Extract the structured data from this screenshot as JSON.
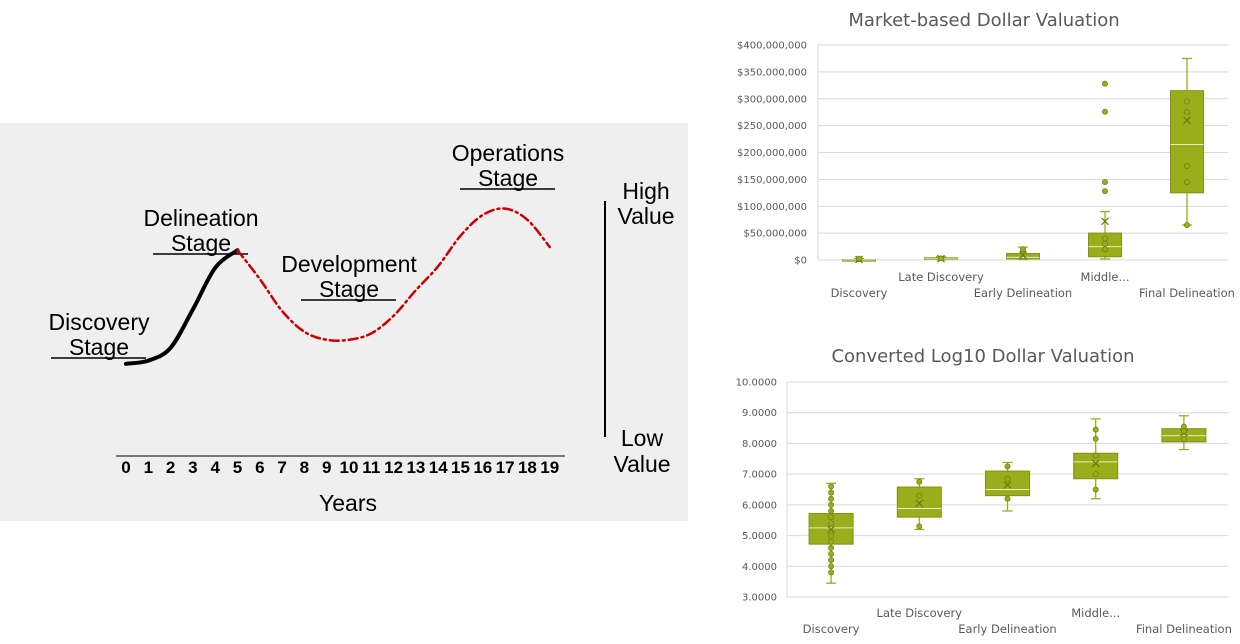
{
  "chart_data": [
    {
      "type": "line",
      "xlabel": "Years",
      "x_ticks": [
        "0",
        "1",
        "2",
        "3",
        "4",
        "5",
        "6",
        "7",
        "8",
        "9",
        "10",
        "11",
        "12",
        "13",
        "14",
        "15",
        "16",
        "17",
        "18",
        "19"
      ],
      "stages": [
        {
          "id": "discovery",
          "line1": "Discovery",
          "line2": "Stage"
        },
        {
          "id": "delineation",
          "line1": "Delineation",
          "line2": "Stage"
        },
        {
          "id": "development",
          "line1": "Development",
          "line2": "Stage"
        },
        {
          "id": "operations",
          "line1": "Operations",
          "line2": "Stage"
        }
      ],
      "value_axis": {
        "high": [
          "High",
          "Value"
        ],
        "low": [
          "Low",
          "Value"
        ]
      },
      "series": [
        {
          "style": "solid",
          "color": "#000000",
          "x": [
            0,
            1,
            2,
            3,
            4,
            5
          ],
          "y": [
            0.12,
            0.14,
            0.22,
            0.46,
            0.72,
            0.83
          ]
        },
        {
          "style": "dash-dot",
          "color": "#cc0000",
          "x": [
            5,
            6,
            7,
            8,
            9,
            10,
            11,
            12,
            13,
            14,
            15,
            16,
            17,
            18,
            19
          ],
          "y": [
            0.83,
            0.65,
            0.45,
            0.32,
            0.27,
            0.27,
            0.31,
            0.42,
            0.58,
            0.73,
            0.92,
            1.05,
            1.09,
            1.02,
            0.85
          ]
        }
      ]
    },
    {
      "type": "box",
      "title": "Market-based Dollar Valuation",
      "ylim": [
        0,
        400000000
      ],
      "y_ticks": [
        "$0",
        "$50,000,000",
        "$100,000,000",
        "$150,000,000",
        "$200,000,000",
        "$250,000,000",
        "$300,000,000",
        "$350,000,000",
        "$400,000,000"
      ],
      "categories": [
        "Discovery",
        "Late Discovery",
        "Early Delineation",
        "Middle...",
        "Final Delineation"
      ],
      "color": "#9aae1c",
      "boxes": [
        {
          "min": 0,
          "q1": 0,
          "median": 200000,
          "q3": 800000,
          "max": 3000000,
          "mean": 1000000,
          "points": [
            1500000,
            2500000
          ]
        },
        {
          "min": 200000,
          "q1": 1000000,
          "median": 2000000,
          "q3": 4000000,
          "max": 6000000,
          "mean": 2500000,
          "points": [
            3000000
          ]
        },
        {
          "min": 1000000,
          "q1": 2000000,
          "median": 5000000,
          "q3": 12000000,
          "max": 24000000,
          "mean": 9000000,
          "points": [
            16000000,
            20000000
          ]
        },
        {
          "min": 2000000,
          "q1": 6000000,
          "median": 25000000,
          "q3": 50000000,
          "max": 90000000,
          "mean": 72000000,
          "points": [
            328000000,
            276000000,
            145000000,
            128000000,
            40000000,
            30000000,
            20000000
          ]
        },
        {
          "min": 65000000,
          "q1": 125000000,
          "median": 215000000,
          "q3": 315000000,
          "max": 375000000,
          "mean": 260000000,
          "points": [
            295000000,
            275000000,
            175000000,
            145000000,
            65000000
          ]
        }
      ]
    },
    {
      "type": "box",
      "title": "Converted Log10 Dollar Valuation",
      "ylim": [
        3,
        10
      ],
      "y_ticks": [
        "3.0000",
        "4.0000",
        "5.0000",
        "6.0000",
        "7.0000",
        "8.0000",
        "9.0000",
        "10.0000"
      ],
      "categories": [
        "Discovery",
        "Late Discovery",
        "Early Delineation",
        "Middle...",
        "Final Delineation"
      ],
      "color": "#9aae1c",
      "boxes": [
        {
          "min": 3.45,
          "q1": 4.72,
          "median": 5.25,
          "q3": 5.72,
          "max": 6.7,
          "mean": 5.2,
          "points": [
            3.8,
            4.0,
            4.2,
            4.4,
            4.6,
            4.8,
            5.0,
            5.4,
            5.6,
            5.8,
            6.0,
            6.2,
            6.4,
            6.6
          ]
        },
        {
          "min": 5.2,
          "q1": 5.6,
          "median": 5.88,
          "q3": 6.58,
          "max": 6.85,
          "mean": 6.05,
          "points": [
            5.3,
            6.3,
            6.75
          ]
        },
        {
          "min": 5.8,
          "q1": 6.3,
          "median": 6.5,
          "q3": 7.1,
          "max": 7.38,
          "mean": 6.65,
          "points": [
            6.2,
            6.85,
            7.25
          ]
        },
        {
          "min": 6.2,
          "q1": 6.85,
          "median": 7.4,
          "q3": 7.68,
          "max": 8.8,
          "mean": 7.35,
          "points": [
            6.5,
            7.0,
            7.6,
            8.15,
            8.45
          ]
        },
        {
          "min": 7.8,
          "q1": 8.05,
          "median": 8.25,
          "q3": 8.48,
          "max": 8.9,
          "mean": 8.35,
          "points": [
            8.15,
            8.4,
            8.55
          ]
        }
      ]
    }
  ]
}
